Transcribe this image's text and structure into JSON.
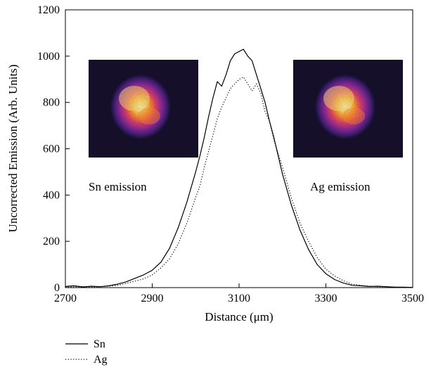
{
  "chart_data": {
    "type": "line",
    "xlabel": "Distance (μm)",
    "ylabel": "Uncorrected Emission (Arb. Units)",
    "xlim": [
      2700,
      3500
    ],
    "ylim": [
      0,
      1200
    ],
    "xticks": [
      2700,
      2900,
      3100,
      3300,
      3500
    ],
    "yticks": [
      0,
      200,
      400,
      600,
      800,
      1000,
      1200
    ],
    "grid": false,
    "legend_position": "below-left",
    "series": [
      {
        "name": "Sn",
        "style": "solid",
        "x": [
          2700,
          2720,
          2740,
          2760,
          2780,
          2800,
          2820,
          2840,
          2860,
          2880,
          2900,
          2920,
          2940,
          2960,
          2980,
          3000,
          3010,
          3020,
          3030,
          3040,
          3050,
          3060,
          3070,
          3080,
          3090,
          3100,
          3110,
          3120,
          3130,
          3140,
          3150,
          3160,
          3170,
          3180,
          3190,
          3200,
          3220,
          3240,
          3260,
          3280,
          3300,
          3320,
          3340,
          3360,
          3380,
          3400,
          3420,
          3440,
          3460,
          3480,
          3500
        ],
        "y": [
          5,
          8,
          3,
          6,
          4,
          8,
          15,
          25,
          40,
          55,
          75,
          110,
          170,
          260,
          370,
          500,
          570,
          650,
          740,
          820,
          890,
          870,
          920,
          980,
          1010,
          1020,
          1030,
          1000,
          980,
          920,
          860,
          800,
          720,
          650,
          570,
          490,
          360,
          250,
          165,
          100,
          60,
          35,
          20,
          10,
          8,
          5,
          6,
          4,
          2,
          2,
          1
        ]
      },
      {
        "name": "Ag",
        "style": "dotted",
        "x": [
          2700,
          2720,
          2740,
          2760,
          2780,
          2800,
          2820,
          2840,
          2860,
          2880,
          2900,
          2920,
          2940,
          2960,
          2980,
          3000,
          3010,
          3020,
          3030,
          3040,
          3050,
          3060,
          3070,
          3080,
          3090,
          3100,
          3110,
          3120,
          3130,
          3140,
          3150,
          3160,
          3170,
          3180,
          3190,
          3200,
          3220,
          3240,
          3260,
          3280,
          3300,
          3320,
          3340,
          3360,
          3380,
          3400,
          3420,
          3440,
          3460,
          3480,
          3500
        ],
        "y": [
          2,
          4,
          3,
          2,
          4,
          6,
          10,
          18,
          28,
          38,
          55,
          85,
          125,
          190,
          280,
          390,
          440,
          520,
          590,
          660,
          730,
          780,
          820,
          860,
          880,
          900,
          910,
          880,
          850,
          880,
          840,
          760,
          720,
          640,
          580,
          520,
          390,
          280,
          200,
          130,
          80,
          50,
          30,
          15,
          10,
          6,
          4,
          3,
          2,
          1,
          1
        ]
      }
    ],
    "annotations": [
      "Sn emission",
      "Ag emission"
    ]
  },
  "insets": [
    {
      "label": "Sn emission",
      "image": "Sn emission spot heatmap"
    },
    {
      "label": "Ag emission",
      "image": "Ag emission spot heatmap"
    }
  ],
  "colors": {
    "line": "#000000",
    "inset_bg": "#150f2a"
  }
}
